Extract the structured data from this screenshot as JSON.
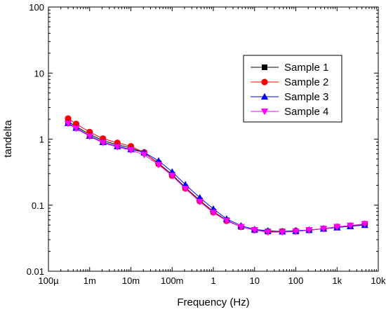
{
  "chart_data": {
    "type": "line",
    "xlabel": "Frequency (Hz)",
    "ylabel": "tandelta",
    "xscale": "log",
    "yscale": "log",
    "xlim": [
      0.0001,
      10000
    ],
    "ylim": [
      0.01,
      100
    ],
    "x_tick_labels": [
      "100µ",
      "1m",
      "10m",
      "100m",
      "1",
      "10",
      "100",
      "1k",
      "10k"
    ],
    "y_tick_labels": [
      "0.01",
      "0.1",
      "1",
      "10",
      "100"
    ],
    "grid": false,
    "legend_position": "top-right",
    "x": [
      0.0003,
      0.00047,
      0.001,
      0.0021,
      0.0047,
      0.01,
      0.021,
      0.047,
      0.1,
      0.21,
      0.47,
      1,
      2.1,
      4.7,
      10,
      21,
      47,
      100,
      210,
      470,
      1000,
      2100,
      4700
    ],
    "series": [
      {
        "name": "Sample 1",
        "color": "#000000",
        "marker": "square",
        "values": [
          1.85,
          1.55,
          1.18,
          0.95,
          0.82,
          0.74,
          0.62,
          0.43,
          0.29,
          0.185,
          0.118,
          0.08,
          0.059,
          0.047,
          0.042,
          0.04,
          0.04,
          0.04,
          0.042,
          0.044,
          0.046,
          0.048,
          0.051
        ]
      },
      {
        "name": "Sample 2",
        "color": "#ff0000",
        "marker": "circle",
        "values": [
          2.05,
          1.7,
          1.28,
          1.02,
          0.88,
          0.78,
          0.63,
          0.42,
          0.28,
          0.18,
          0.115,
          0.078,
          0.058,
          0.047,
          0.042,
          0.04,
          0.04,
          0.041,
          0.042,
          0.044,
          0.047,
          0.049,
          0.052
        ]
      },
      {
        "name": "Sample 3",
        "color": "#0000ff",
        "marker": "triangle-up",
        "values": [
          1.75,
          1.48,
          1.12,
          0.9,
          0.78,
          0.7,
          0.63,
          0.47,
          0.32,
          0.205,
          0.13,
          0.088,
          0.062,
          0.049,
          0.043,
          0.041,
          0.04,
          0.041,
          0.042,
          0.044,
          0.046,
          0.048,
          0.05
        ]
      },
      {
        "name": "Sample 4",
        "color": "#ff00ff",
        "marker": "triangle-down",
        "values": [
          1.72,
          1.45,
          1.1,
          0.88,
          0.76,
          0.68,
          0.58,
          0.41,
          0.28,
          0.178,
          0.113,
          0.077,
          0.058,
          0.047,
          0.042,
          0.039,
          0.039,
          0.04,
          0.042,
          0.044,
          0.047,
          0.049,
          0.052
        ]
      }
    ]
  }
}
